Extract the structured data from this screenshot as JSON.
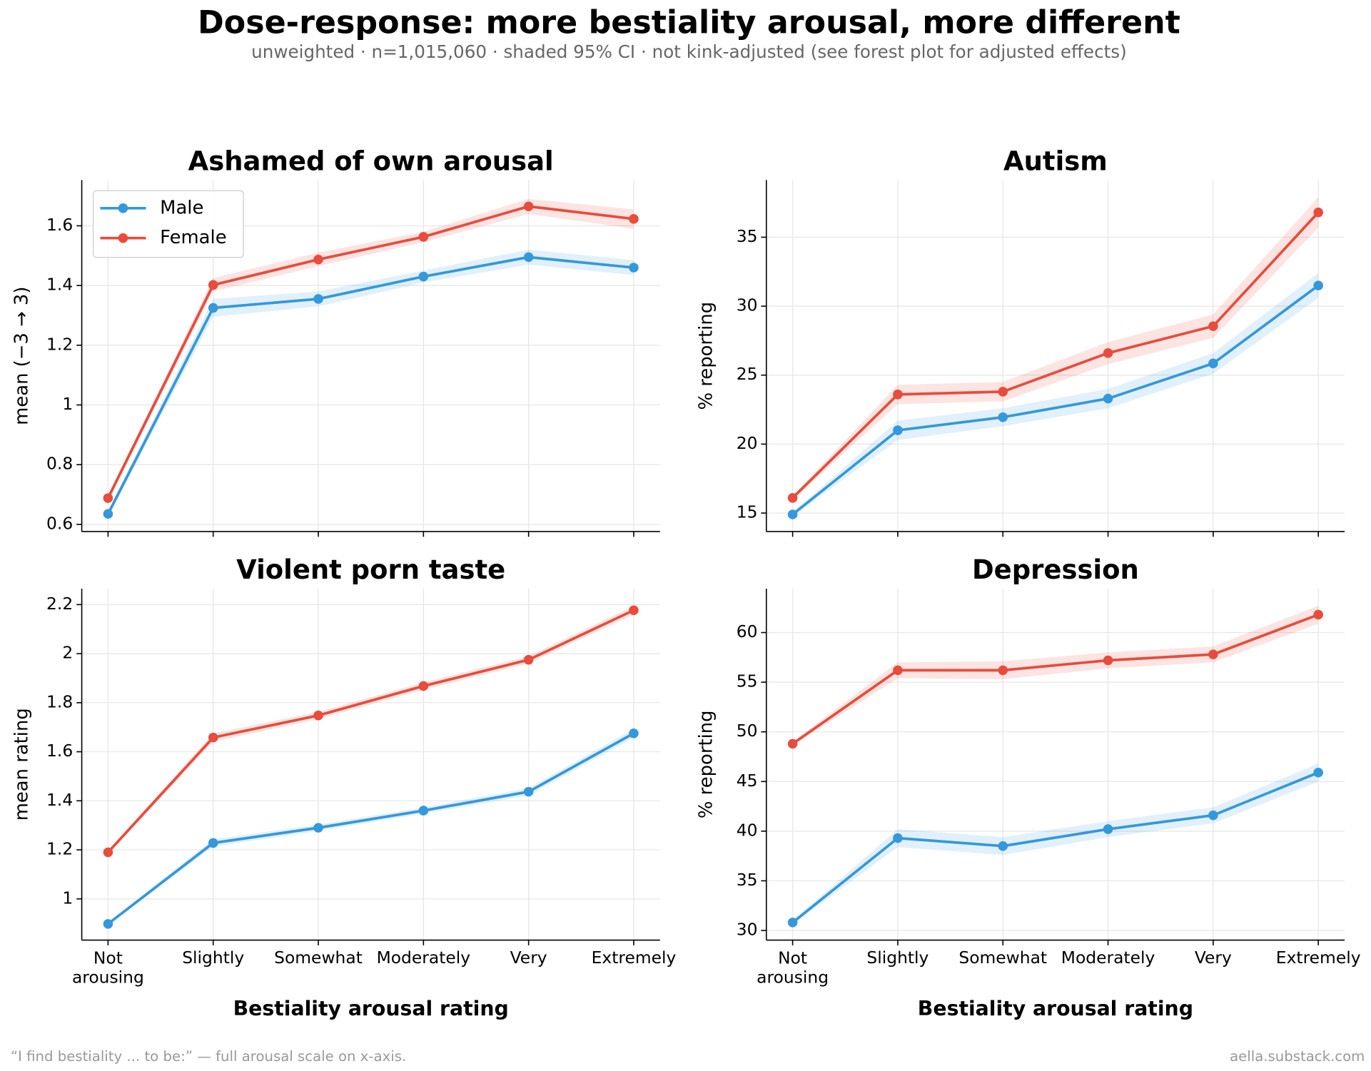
{
  "title": "Dose-response: more bestiality arousal, more different",
  "subtitle": "unweighted · n=1,015,060 · shaded 95% CI · not kink-adjusted (see forest plot for adjusted effects)",
  "footnote": "“I find bestiality ... to be:” — full arousal scale on x-axis.",
  "credit": "aella.substack.com",
  "chart_data": [
    {
      "type": "line",
      "title": "Ashamed of own arousal",
      "ylabel": "mean (−3 → 3)",
      "categories": [
        "Not\narousing",
        "Slightly",
        "Somewhat",
        "Moderately",
        "Very",
        "Extremely"
      ],
      "xticklabels": false,
      "ylim": [
        0.576,
        1.753
      ],
      "yticks": [
        0.6,
        0.8,
        1.0,
        1.2,
        1.4,
        1.6
      ],
      "grid": true,
      "legend": "upper left",
      "series": [
        {
          "name": "Male",
          "color": "#3498db",
          "values": [
            0.635,
            1.325,
            1.355,
            1.43,
            1.495,
            1.46
          ],
          "lower": [
            0.625,
            1.295,
            1.33,
            1.41,
            1.47,
            1.435
          ],
          "upper": [
            0.645,
            1.355,
            1.38,
            1.45,
            1.52,
            1.485
          ]
        },
        {
          "name": "Female",
          "color": "#e74c3c",
          "values": [
            0.688,
            1.402,
            1.487,
            1.563,
            1.665,
            1.623
          ],
          "lower": [
            0.678,
            1.38,
            1.465,
            1.545,
            1.64,
            1.59
          ],
          "upper": [
            0.698,
            1.425,
            1.51,
            1.58,
            1.69,
            1.655
          ]
        }
      ]
    },
    {
      "type": "line",
      "title": "Autism",
      "ylabel": "% reporting",
      "categories": [
        "Not\narousing",
        "Slightly",
        "Somewhat",
        "Moderately",
        "Very",
        "Extremely"
      ],
      "xticklabels": false,
      "ylim": [
        13.66,
        39.14
      ],
      "yticks": [
        15,
        20,
        25,
        30,
        35
      ],
      "grid": true,
      "series": [
        {
          "name": "Male",
          "color": "#3498db",
          "values": [
            14.9,
            21.0,
            21.95,
            23.3,
            25.85,
            31.5
          ],
          "lower": [
            14.75,
            20.3,
            21.3,
            22.6,
            25.1,
            30.6
          ],
          "upper": [
            15.05,
            21.7,
            22.6,
            24.0,
            26.6,
            32.4
          ]
        },
        {
          "name": "Female",
          "color": "#e74c3c",
          "values": [
            16.1,
            23.6,
            23.8,
            26.6,
            28.55,
            36.8
          ],
          "lower": [
            15.95,
            22.9,
            23.1,
            25.8,
            27.7,
            35.7
          ],
          "upper": [
            16.25,
            24.3,
            24.5,
            27.4,
            29.4,
            37.9
          ]
        }
      ]
    },
    {
      "type": "line",
      "title": "Violent porn taste",
      "ylabel": "mean rating",
      "xlabel": "Bestiality arousal rating",
      "categories": [
        "Not\narousing",
        "Slightly",
        "Somewhat",
        "Moderately",
        "Very",
        "Extremely"
      ],
      "xticklabels": true,
      "ylim": [
        0.832,
        2.265
      ],
      "yticks": [
        1.0,
        1.2,
        1.4,
        1.6,
        1.8,
        2.0,
        2.2
      ],
      "grid": true,
      "series": [
        {
          "name": "Male",
          "color": "#3498db",
          "values": [
            0.898,
            1.228,
            1.29,
            1.36,
            1.437,
            1.675
          ],
          "lower": [
            0.893,
            1.213,
            1.277,
            1.347,
            1.422,
            1.657
          ],
          "upper": [
            0.903,
            1.243,
            1.303,
            1.373,
            1.452,
            1.693
          ]
        },
        {
          "name": "Female",
          "color": "#e74c3c",
          "values": [
            1.19,
            1.658,
            1.748,
            1.868,
            1.975,
            2.177
          ],
          "lower": [
            1.183,
            1.641,
            1.733,
            1.853,
            1.96,
            2.159
          ],
          "upper": [
            1.197,
            1.675,
            1.763,
            1.883,
            1.99,
            2.195
          ]
        }
      ]
    },
    {
      "type": "line",
      "title": "Depression",
      "ylabel": "% reporting",
      "xlabel": "Bestiality arousal rating",
      "categories": [
        "Not\narousing",
        "Slightly",
        "Somewhat",
        "Moderately",
        "Very",
        "Extremely"
      ],
      "xticklabels": true,
      "ylim": [
        29.03,
        64.42
      ],
      "yticks": [
        30,
        35,
        40,
        45,
        50,
        55,
        60
      ],
      "grid": true,
      "series": [
        {
          "name": "Male",
          "color": "#3498db",
          "values": [
            30.8,
            39.3,
            38.5,
            40.2,
            41.6,
            45.9
          ],
          "lower": [
            30.6,
            38.4,
            37.6,
            39.4,
            40.8,
            45.0
          ],
          "upper": [
            31.0,
            40.2,
            39.4,
            41.0,
            42.4,
            46.8
          ]
        },
        {
          "name": "Female",
          "color": "#e74c3c",
          "values": [
            48.8,
            56.2,
            56.2,
            57.2,
            57.8,
            61.8
          ],
          "lower": [
            48.6,
            55.4,
            55.3,
            56.4,
            57.0,
            60.9
          ],
          "upper": [
            49.0,
            57.0,
            57.1,
            58.0,
            58.6,
            62.7
          ]
        }
      ]
    }
  ]
}
